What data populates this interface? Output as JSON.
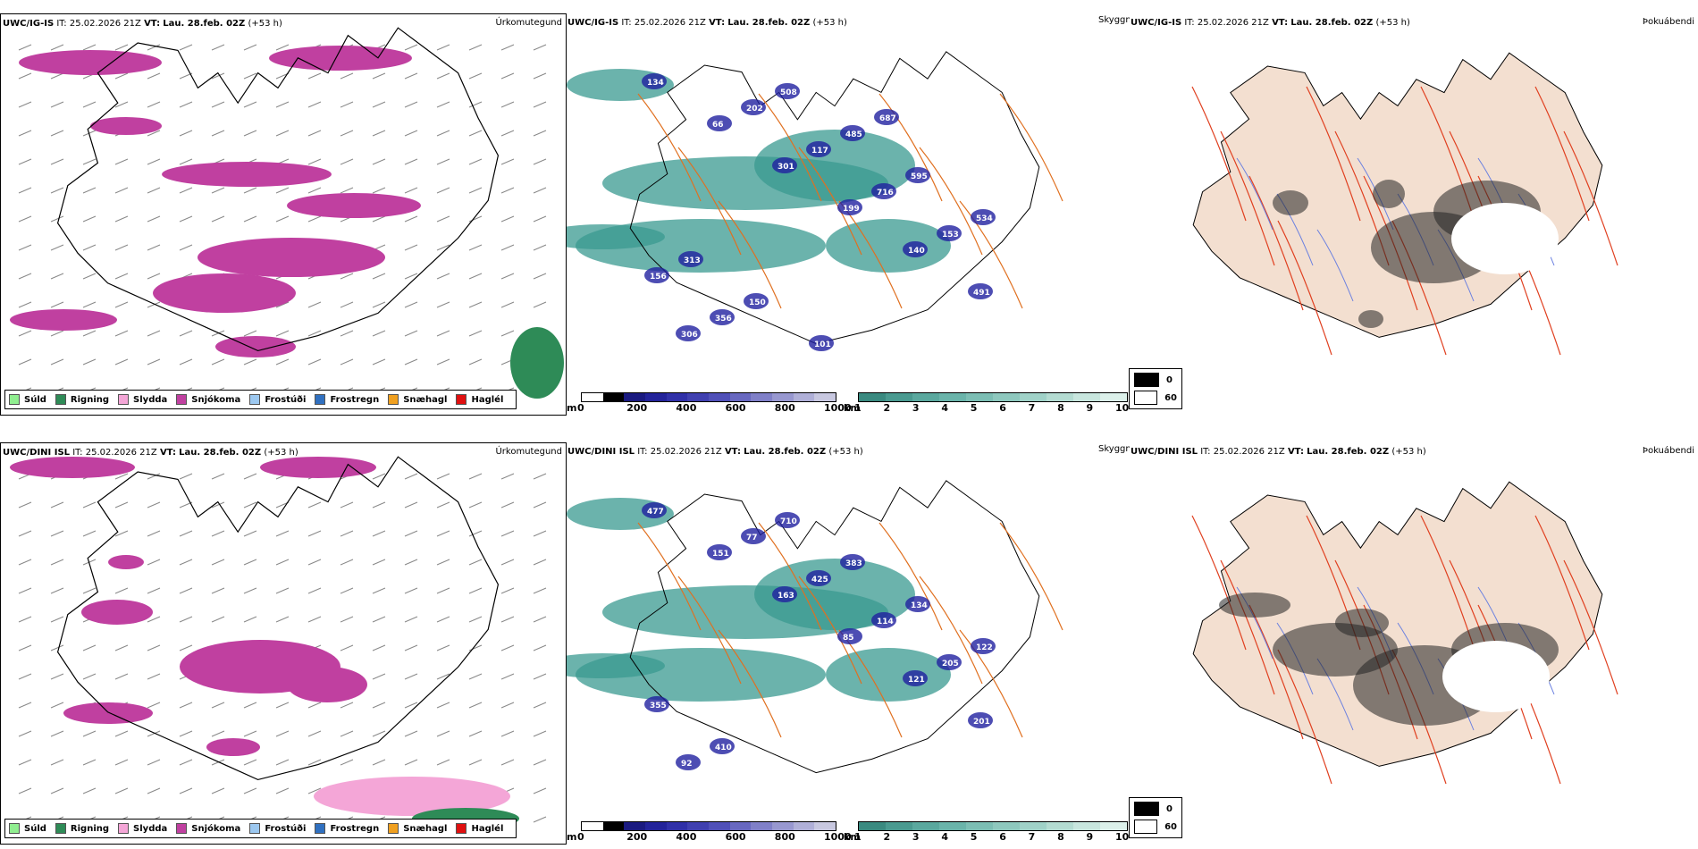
{
  "rows": [
    {
      "model": "UWC/IG-IS",
      "it_label": "IT:",
      "it_value": "25.02.2026 21Z",
      "vt_label": "VT:",
      "vt_value": "Lau. 28.feb. 02Z",
      "lead": "(+53 h)",
      "precip_title": "Úrkomutegund",
      "vis_title": "Skyggni",
      "fog_title": "Þokuábendi",
      "height_labels": [
        "134",
        "66",
        "301",
        "199",
        "140",
        "491",
        "306",
        "202",
        "117",
        "716",
        "153",
        "156",
        "356",
        "508",
        "485",
        "595",
        "534",
        "313",
        "150",
        "101",
        "687"
      ]
    },
    {
      "model": "UWC/DINI ISL",
      "it_label": "IT:",
      "it_value": "25.02.2026 21Z",
      "vt_label": "VT:",
      "vt_value": "Lau. 28.feb. 02Z",
      "lead": "(+53 h)",
      "precip_title": "Úrkomutegund",
      "vis_title": "Skyggni",
      "fog_title": "Þokuábendi",
      "height_labels": [
        "477",
        "151",
        "163",
        "85",
        "121",
        "201",
        "92",
        "77",
        "425",
        "114",
        "205",
        "355",
        "410",
        "710",
        "383",
        "134",
        "122"
      ]
    }
  ],
  "precip_legend": [
    {
      "label": "Súld",
      "color": "#90ee90"
    },
    {
      "label": "Rigning",
      "color": "#2e8b57"
    },
    {
      "label": "Slydda",
      "color": "#f4a6d7"
    },
    {
      "label": "Snjókoma",
      "color": "#c040a0"
    },
    {
      "label": "Frostúði",
      "color": "#9cc8f0"
    },
    {
      "label": "Frostregn",
      "color": "#3070c0"
    },
    {
      "label": "Snæhagl",
      "color": "#f0a020"
    },
    {
      "label": "Haglél",
      "color": "#e01010"
    }
  ],
  "height_bar": {
    "unit": "m",
    "ticks": [
      "0",
      "200",
      "400",
      "600",
      "800",
      "1000"
    ]
  },
  "vis_bar": {
    "unit": "km",
    "ticks": [
      "1",
      "2",
      "3",
      "4",
      "5",
      "6",
      "7",
      "8",
      "9",
      "10"
    ]
  },
  "fog_legend": {
    "high": "0",
    "low": "60"
  },
  "colors": {
    "snow": "#c040a0",
    "sleet": "#f4a6d7",
    "rain": "#2e8b57",
    "vis_teal": "#3a9a90",
    "height_blue": "#2020a0",
    "roads": "#e07020",
    "land": "#f3dfd0",
    "fog_roads": "#e04020",
    "rivers": "#6a80e0"
  }
}
